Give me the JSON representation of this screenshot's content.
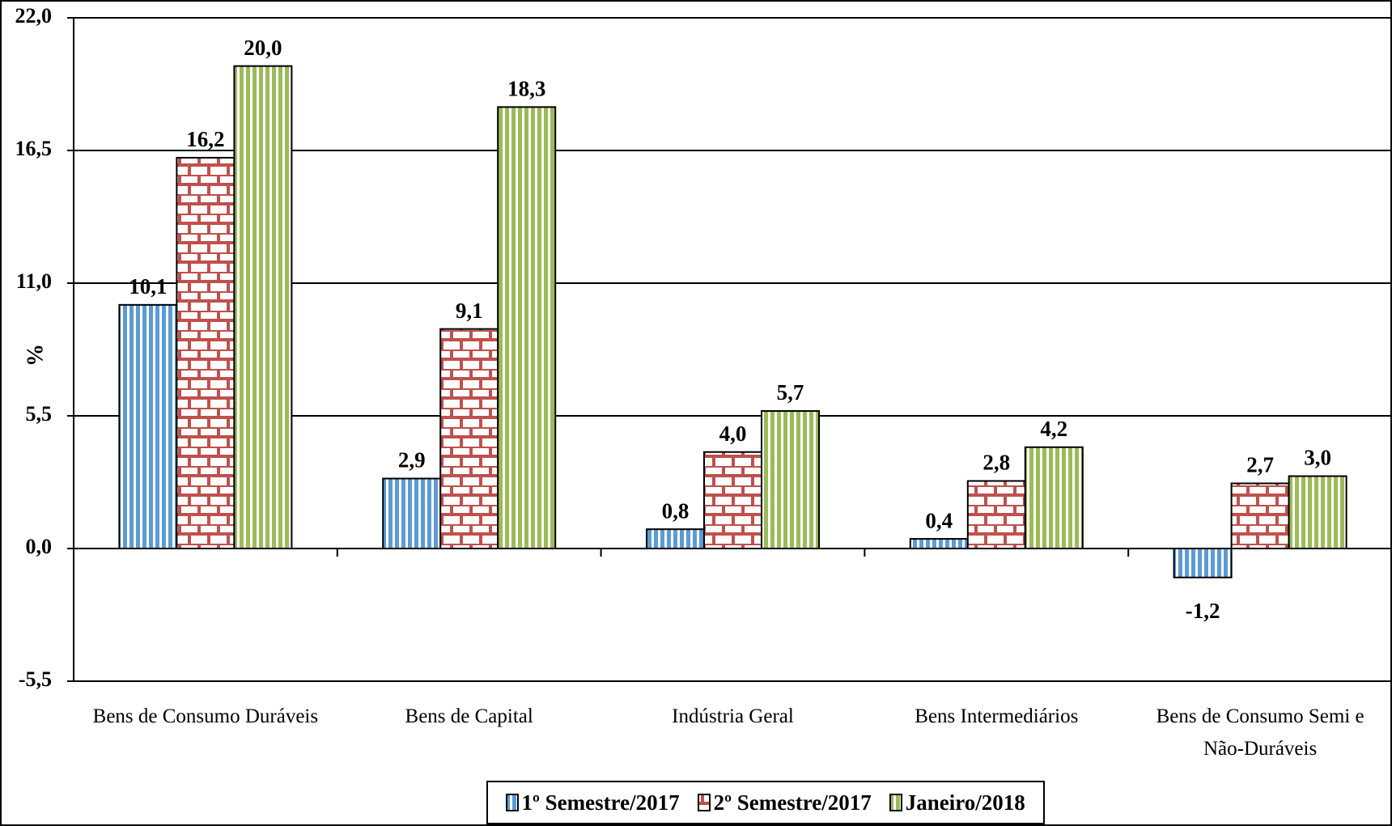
{
  "chart_data": {
    "type": "bar",
    "y_label": "%",
    "categories": [
      "Bens de Consumo Duráveis",
      "Bens de Capital",
      "Indústria Geral",
      "Bens Intermediários",
      "Bens de Consumo Semi e Não-Duráveis"
    ],
    "series": [
      {
        "name": "1º Semestre/2017",
        "color": "#5b9bd5",
        "pattern": "stripes",
        "values": [
          10.1,
          2.9,
          0.8,
          0.4,
          -1.2
        ],
        "value_labels": [
          "10,1",
          "2,9",
          "0,8",
          "0,4",
          "-1,2"
        ]
      },
      {
        "name": "2º Semestre/2017",
        "color": "#c0504d",
        "pattern": "bricks",
        "values": [
          16.2,
          9.1,
          4.0,
          2.8,
          2.7
        ],
        "value_labels": [
          "16,2",
          "9,1",
          "4,0",
          "2,8",
          "2,7"
        ]
      },
      {
        "name": "Janeiro/2018",
        "color": "#9bbb59",
        "pattern": "stripes",
        "values": [
          20.0,
          18.3,
          5.7,
          4.2,
          3.0
        ],
        "value_labels": [
          "20,0",
          "18,3",
          "5,7",
          "4,2",
          "3,0"
        ]
      }
    ],
    "ylim": [
      -5.5,
      22
    ],
    "yticks": [
      {
        "value": -5.5,
        "label": "-5,5"
      },
      {
        "value": 0,
        "label": "0,0"
      },
      {
        "value": 5.5,
        "label": "5,5"
      },
      {
        "value": 11,
        "label": "11,0"
      },
      {
        "value": 16.5,
        "label": "16,5"
      },
      {
        "value": 22,
        "label": "22,0"
      }
    ],
    "grid": true,
    "legend": "bottom"
  }
}
